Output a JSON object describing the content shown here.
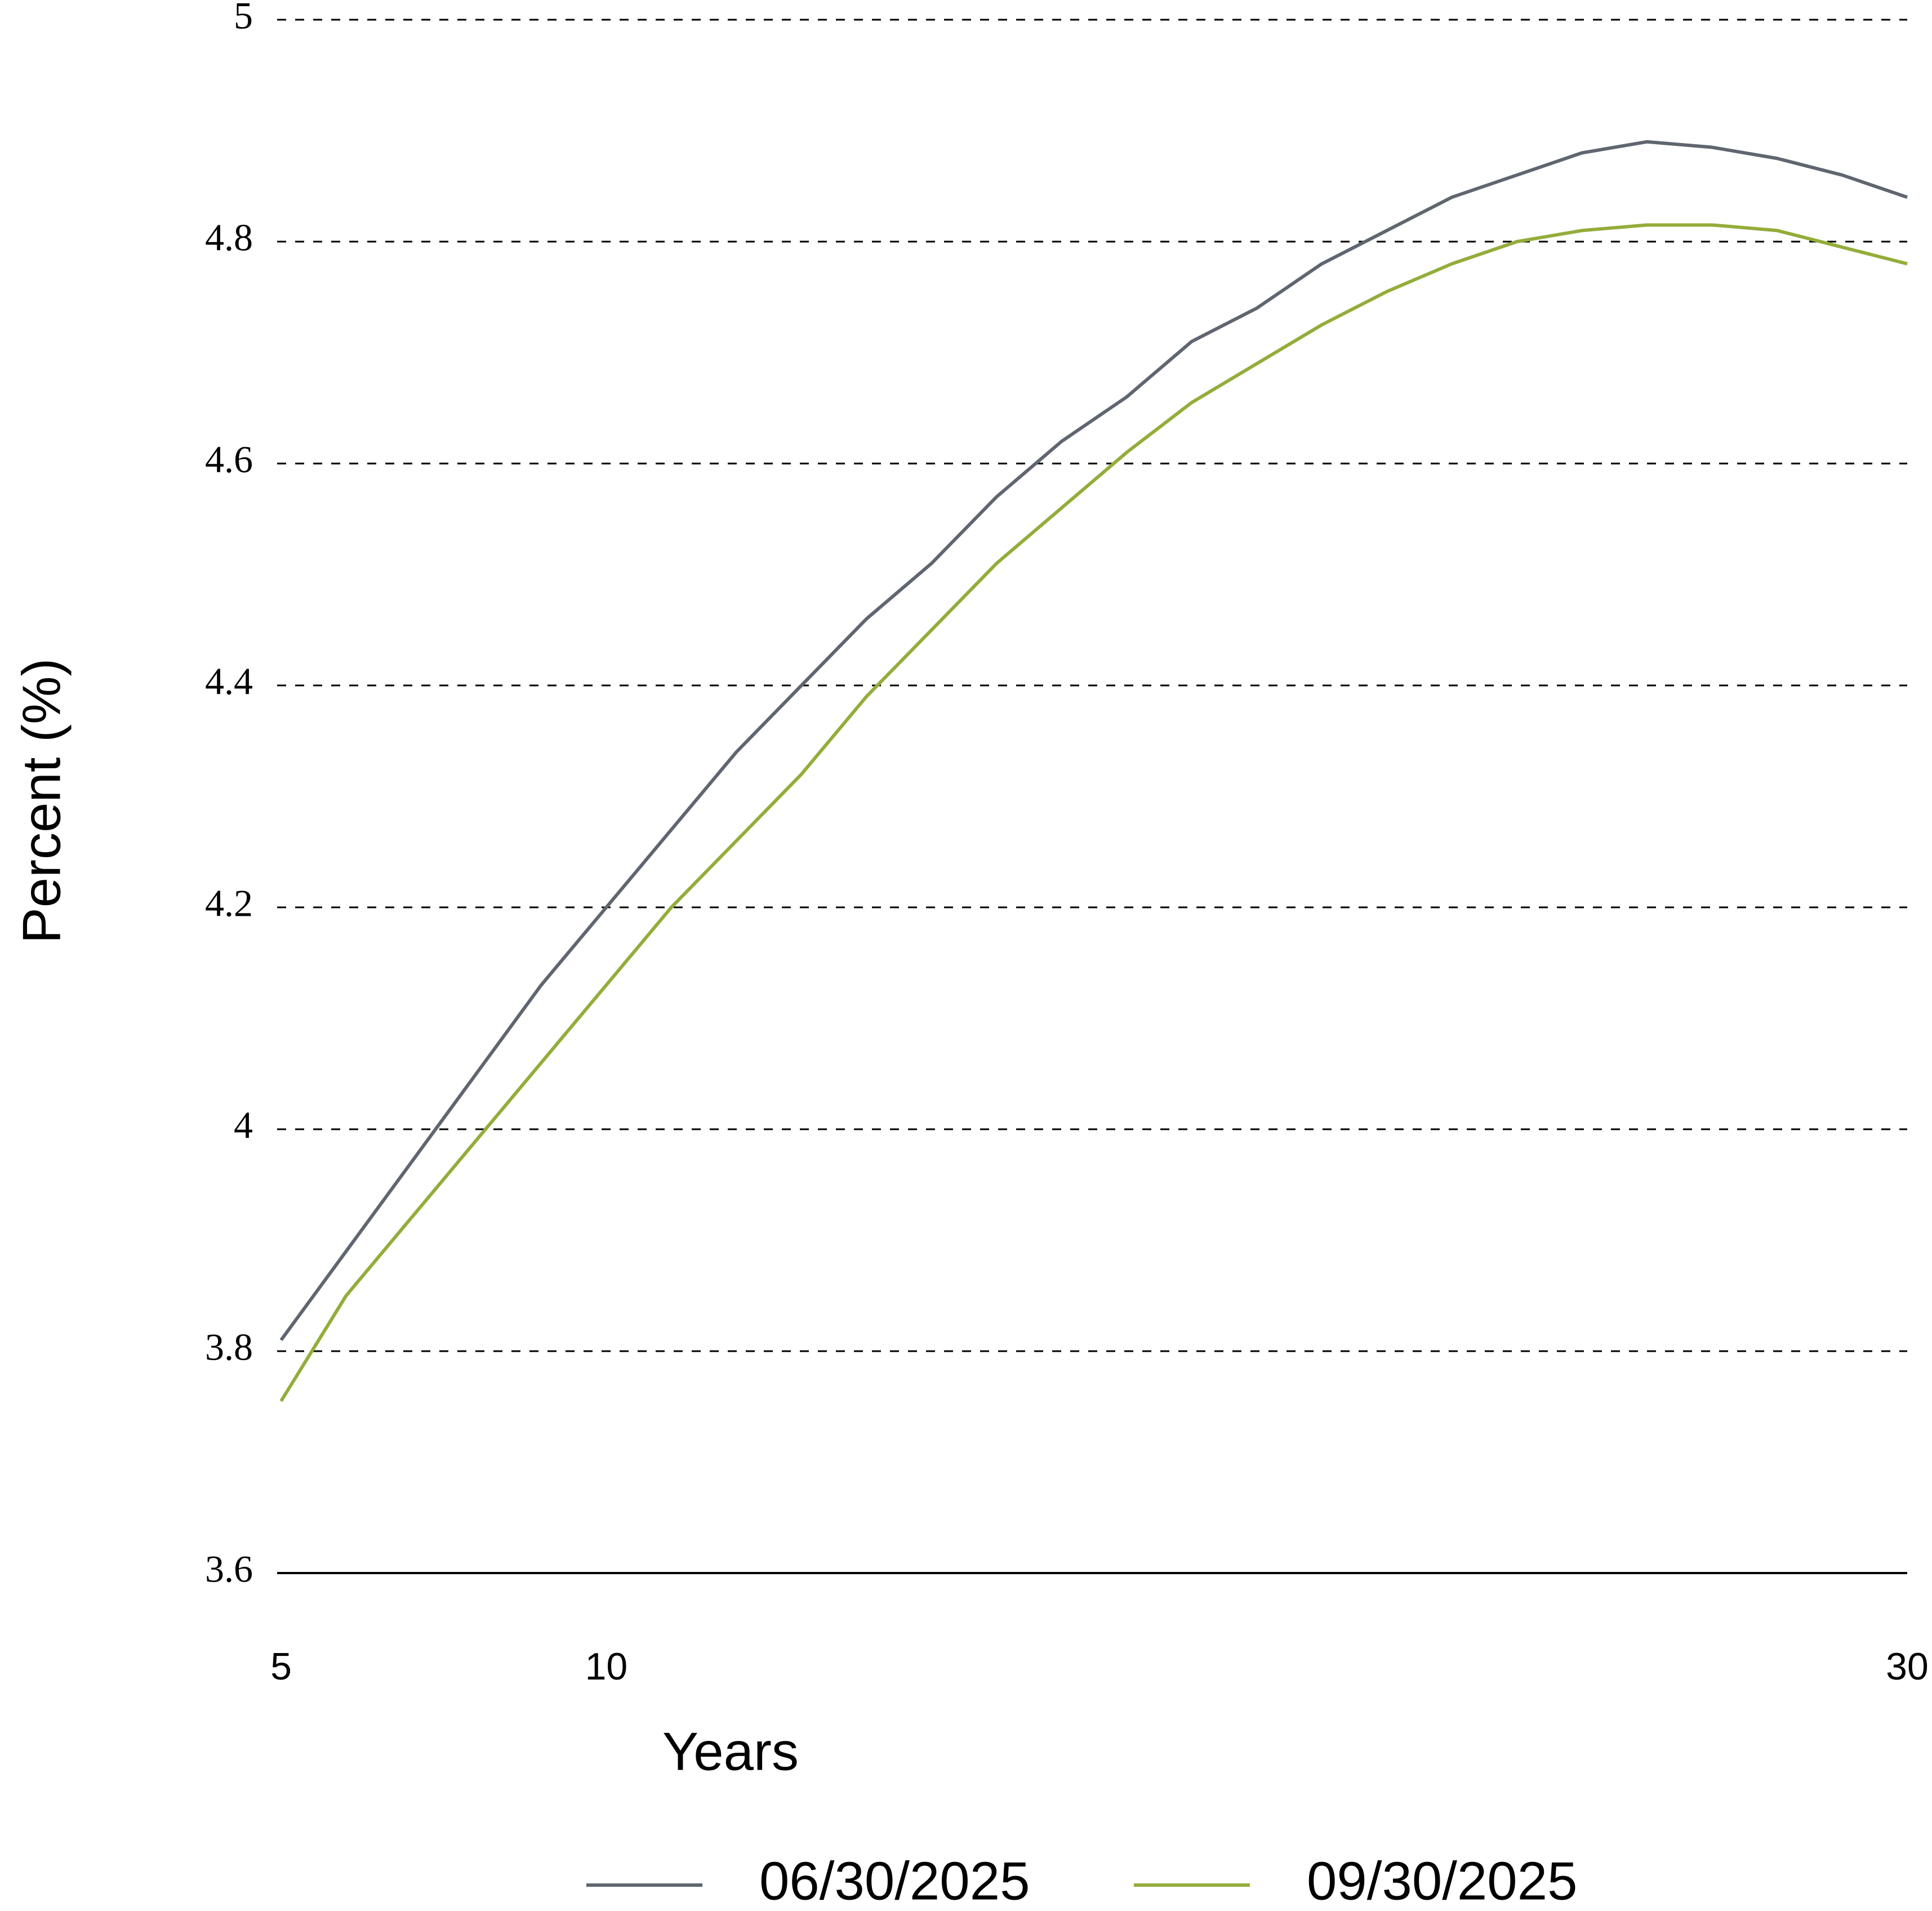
{
  "chart_data": {
    "type": "line",
    "x_label": "Years",
    "y_label": "Percent (%)",
    "x": [
      5,
      6,
      7,
      8,
      9,
      10,
      11,
      12,
      13,
      14,
      15,
      16,
      17,
      18,
      19,
      20,
      21,
      22,
      23,
      24,
      25,
      26,
      27,
      28,
      29,
      30
    ],
    "series": [
      {
        "name": "06/30/2025",
        "color": "#5f6670",
        "values": [
          3.81,
          3.89,
          3.97,
          4.05,
          4.13,
          4.2,
          4.27,
          4.34,
          4.4,
          4.46,
          4.51,
          4.57,
          4.62,
          4.66,
          4.71,
          4.74,
          4.78,
          4.81,
          4.84,
          4.86,
          4.88,
          4.89,
          4.885,
          4.875,
          4.86,
          4.84
        ]
      },
      {
        "name": "09/30/2025",
        "color": "#93ad3a",
        "values": [
          3.755,
          3.85,
          3.92,
          3.99,
          4.06,
          4.13,
          4.2,
          4.26,
          4.32,
          4.39,
          4.45,
          4.51,
          4.56,
          4.61,
          4.655,
          4.69,
          4.725,
          4.755,
          4.78,
          4.8,
          4.81,
          4.815,
          4.815,
          4.81,
          4.795,
          4.78
        ]
      }
    ],
    "xlim": [
      5,
      30
    ],
    "xticks": [
      5,
      10,
      30
    ],
    "ylim": [
      3.6,
      5.0
    ],
    "yticks": [
      3.6,
      3.8,
      4.0,
      4.2,
      4.4,
      4.6,
      4.8,
      5.0
    ],
    "grid": true,
    "legend": "bottom"
  }
}
